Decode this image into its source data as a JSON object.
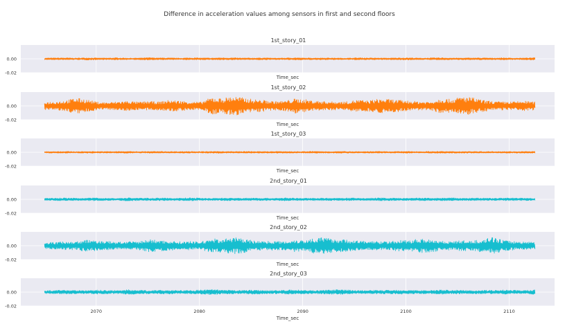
{
  "figure": {
    "title": "Difference in acceleration values among sensors in first and second floors",
    "background": "#ffffff",
    "panel_background": "#eaeaf2",
    "grid_color": "#ffffff"
  },
  "chart_data": [
    {
      "type": "line",
      "title": "1st_story_01",
      "xlabel": "Time_sec",
      "ylabel": "",
      "xlim": [
        2062.7,
        2114.4
      ],
      "ylim": [
        -0.02,
        0.02
      ],
      "x_range": [
        2065,
        2112.5
      ],
      "yticks": [
        0.0,
        -0.02
      ],
      "ytick_labels": [
        "0.00",
        "-0.02"
      ],
      "xticks": [
        2070,
        2080,
        2090,
        2100,
        2110
      ],
      "xtick_labels": [],
      "grid": true,
      "color": "#ff7f0e",
      "series": [
        {
          "values": [
            0.0012,
            -0.0014,
            0.0015,
            -0.0011,
            0.0017,
            -0.0013,
            0.0012,
            -0.0016,
            0.0011,
            -0.0012,
            0.0018,
            -0.0015,
            0.0013,
            -0.0011,
            0.0016,
            -0.0014,
            0.0012,
            -0.0017,
            0.0015,
            -0.0012,
            0.0013,
            -0.0016,
            0.0011,
            -0.0013,
            0.0017,
            -0.0012,
            0.0014,
            -0.0015,
            0.0012,
            -0.0011,
            0.0016,
            -0.0014,
            0.0013,
            -0.0012,
            0.0015,
            -0.0016,
            0.0011,
            -0.0014,
            0.0017,
            -0.0013,
            0.0012,
            -0.0015,
            0.0014,
            -0.0012,
            0.0016,
            -0.0011,
            0.0013,
            -0.0017
          ]
        }
      ]
    },
    {
      "type": "line",
      "title": "1st_story_02",
      "xlabel": "Time_sec",
      "ylabel": "",
      "xlim": [
        2062.7,
        2114.4
      ],
      "ylim": [
        -0.02,
        0.02
      ],
      "x_range": [
        2065,
        2112.5
      ],
      "yticks": [
        0.0,
        -0.02
      ],
      "ytick_labels": [
        "0.00",
        "-0.02"
      ],
      "xticks": [
        2070,
        2080,
        2090,
        2100,
        2110
      ],
      "xtick_labels": [],
      "grid": true,
      "color": "#ff7f0e",
      "series": [
        {
          "values": [
            0.0055,
            -0.0062,
            0.0078,
            -0.0115,
            0.0095,
            -0.0058,
            0.0049,
            -0.0061,
            0.0072,
            -0.0055,
            0.0068,
            -0.0059,
            0.0085,
            -0.0072,
            0.0061,
            -0.0054,
            0.0125,
            -0.0108,
            0.0142,
            -0.0118,
            0.0095,
            -0.0082,
            0.0066,
            -0.0071,
            0.0104,
            -0.0092,
            0.0072,
            -0.0065,
            0.0058,
            -0.0062,
            0.0088,
            -0.0075,
            0.0101,
            -0.0096,
            0.0084,
            -0.0071,
            0.0063,
            -0.0058,
            0.0112,
            -0.0094,
            0.0135,
            -0.0121,
            0.0082,
            -0.0066,
            0.0059,
            -0.0062,
            0.0071,
            -0.0058
          ]
        }
      ]
    },
    {
      "type": "line",
      "title": "1st_story_03",
      "xlabel": "Time_sec",
      "ylabel": "",
      "xlim": [
        2062.7,
        2114.4
      ],
      "ylim": [
        -0.02,
        0.02
      ],
      "x_range": [
        2065,
        2112.5
      ],
      "yticks": [
        0.0,
        -0.02
      ],
      "ytick_labels": [
        "0.00",
        "-0.02"
      ],
      "xticks": [
        2070,
        2080,
        2090,
        2100,
        2110
      ],
      "xtick_labels": [],
      "grid": true,
      "color": "#ff7f0e",
      "series": [
        {
          "values": [
            0.0011,
            -0.0012,
            0.0013,
            -0.001,
            0.0012,
            -0.0013,
            0.0011,
            -0.0012,
            0.0014,
            -0.0011,
            0.0012,
            -0.0013,
            0.0011,
            -0.0012,
            0.0013,
            -0.0011,
            0.0012,
            -0.0014,
            0.0011,
            -0.0012,
            0.0013,
            -0.0011,
            0.0012,
            -0.0013,
            0.0011,
            -0.0012,
            0.0014,
            -0.0011,
            0.0012,
            -0.0013,
            0.0011,
            -0.0012,
            0.0013,
            -0.0011,
            0.0012,
            -0.0013,
            0.0011,
            -0.0012,
            0.0014,
            -0.0011,
            0.0012,
            -0.0013,
            0.0011,
            -0.0012,
            0.0013,
            -0.0011,
            0.0012,
            -0.0013
          ]
        }
      ]
    },
    {
      "type": "line",
      "title": "2nd_story_01",
      "xlabel": "Time_sec",
      "ylabel": "",
      "xlim": [
        2062.7,
        2114.4
      ],
      "ylim": [
        -0.02,
        0.02
      ],
      "x_range": [
        2065,
        2112.5
      ],
      "yticks": [
        0.0,
        -0.02
      ],
      "ytick_labels": [
        "0.00",
        "-0.02"
      ],
      "xticks": [
        2070,
        2080,
        2090,
        2100,
        2110
      ],
      "xtick_labels": [],
      "grid": true,
      "color": "#17becf",
      "series": [
        {
          "values": [
            0.0016,
            -0.0018,
            0.0021,
            -0.0017,
            0.0019,
            -0.0022,
            0.0017,
            -0.0016,
            0.0023,
            -0.0019,
            0.0018,
            -0.0021,
            0.0017,
            -0.0019,
            0.0022,
            -0.0018,
            0.0016,
            -0.002,
            0.0019,
            -0.0017,
            0.0021,
            -0.0018,
            0.0017,
            -0.0022,
            0.0018,
            -0.0016,
            0.002,
            -0.0019,
            0.0017,
            -0.0021,
            0.0018,
            -0.0017,
            0.0022,
            -0.0019,
            0.0018,
            -0.0016,
            0.0021,
            -0.0018,
            0.0019,
            -0.0022,
            0.0017,
            -0.0018,
            0.002,
            -0.0017,
            0.0019,
            -0.0021,
            0.0018,
            -0.0017
          ]
        }
      ]
    },
    {
      "type": "line",
      "title": "2nd_story_02",
      "xlabel": "Time_sec",
      "ylabel": "",
      "xlim": [
        2062.7,
        2114.4
      ],
      "ylim": [
        -0.02,
        0.02
      ],
      "x_range": [
        2065,
        2112.5
      ],
      "yticks": [
        0.0,
        -0.02
      ],
      "ytick_labels": [
        "0.00",
        "-0.02"
      ],
      "xticks": [
        2070,
        2080,
        2090,
        2100,
        2110
      ],
      "xtick_labels": [],
      "grid": true,
      "color": "#17becf",
      "series": [
        {
          "values": [
            0.0045,
            -0.0052,
            0.0061,
            -0.0058,
            0.0085,
            -0.0071,
            0.0064,
            -0.0055,
            0.0058,
            -0.0062,
            0.0091,
            -0.0078,
            0.0066,
            -0.0059,
            0.0062,
            -0.0057,
            0.0102,
            -0.0095,
            0.0118,
            -0.0108,
            0.0072,
            -0.0065,
            0.0068,
            -0.0061,
            0.0088,
            -0.0079,
            0.0124,
            -0.0112,
            0.0098,
            -0.0085,
            0.0071,
            -0.0066,
            0.0063,
            -0.0058,
            0.0082,
            -0.0075,
            0.0104,
            -0.0092,
            0.0069,
            -0.0061,
            0.0076,
            -0.0068,
            0.0095,
            -0.0121,
            0.0078,
            -0.0064,
            0.0058,
            -0.0055
          ]
        }
      ]
    },
    {
      "type": "line",
      "title": "2nd_story_03",
      "xlabel": "Time_sec",
      "ylabel": "",
      "xlim": [
        2062.7,
        2114.4
      ],
      "ylim": [
        -0.02,
        0.02
      ],
      "x_range": [
        2065,
        2112.5
      ],
      "yticks": [
        0.0,
        -0.02
      ],
      "ytick_labels": [
        "0.00",
        "-0.02"
      ],
      "xticks": [
        2070,
        2080,
        2090,
        2100,
        2110
      ],
      "xtick_labels": [
        "2070",
        "2080",
        "2090",
        "2100",
        "2110"
      ],
      "grid": true,
      "color": "#17becf",
      "series": [
        {
          "values": [
            0.0022,
            -0.0025,
            0.0031,
            -0.0027,
            0.0024,
            -0.0029,
            0.0026,
            -0.0023,
            0.0035,
            -0.0028,
            0.0025,
            -0.0027,
            0.0029,
            -0.0024,
            0.0026,
            -0.0031,
            0.0038,
            -0.0029,
            0.0027,
            -0.0025,
            0.0032,
            -0.0026,
            0.0024,
            -0.0028,
            0.0034,
            -0.0027,
            0.0025,
            -0.0029,
            0.0036,
            -0.0031,
            0.0026,
            -0.0024,
            0.0029,
            -0.0027,
            0.0033,
            -0.0028,
            0.0025,
            -0.0026,
            0.0031,
            -0.0029,
            0.0027,
            -0.0024,
            0.0028,
            -0.0026,
            0.0032,
            -0.0027,
            0.0025,
            -0.0034
          ]
        }
      ]
    }
  ]
}
